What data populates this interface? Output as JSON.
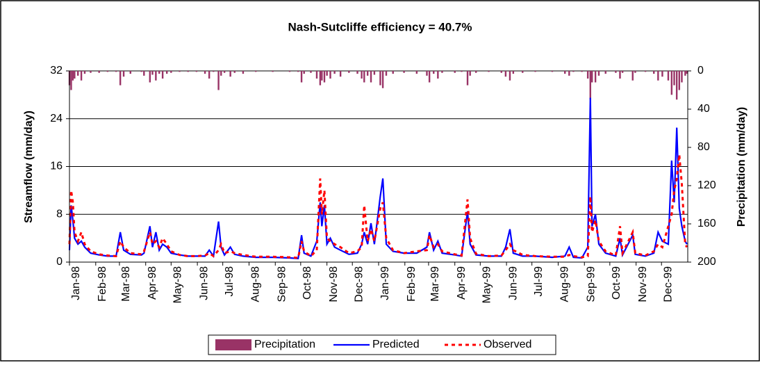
{
  "chart_data": {
    "type": "line",
    "title": "Nash-Sutcliffe efficiency = 40.7%",
    "ylabel": "Streamflow (mm/day)",
    "y2label": "Precipitation (mm/day)",
    "xlim": [
      0,
      730
    ],
    "xticks": [
      {
        "value": 0,
        "label": "Jan-98"
      },
      {
        "value": 31,
        "label": "Feb-98"
      },
      {
        "value": 59,
        "label": "Mar-98"
      },
      {
        "value": 90,
        "label": "Apr-98"
      },
      {
        "value": 120,
        "label": "May-98"
      },
      {
        "value": 151,
        "label": "Jun-98"
      },
      {
        "value": 181,
        "label": "Jul-98"
      },
      {
        "value": 212,
        "label": "Aug-98"
      },
      {
        "value": 243,
        "label": "Sep-98"
      },
      {
        "value": 273,
        "label": "Oct-98"
      },
      {
        "value": 304,
        "label": "Nov-98"
      },
      {
        "value": 334,
        "label": "Dec-98"
      },
      {
        "value": 365,
        "label": "Jan-99"
      },
      {
        "value": 396,
        "label": "Feb-99"
      },
      {
        "value": 424,
        "label": "Mar-99"
      },
      {
        "value": 455,
        "label": "Apr-99"
      },
      {
        "value": 485,
        "label": "May-99"
      },
      {
        "value": 516,
        "label": "Jun-99"
      },
      {
        "value": 546,
        "label": "Jul-99"
      },
      {
        "value": 577,
        "label": "Aug-99"
      },
      {
        "value": 608,
        "label": "Sep-99"
      },
      {
        "value": 638,
        "label": "Oct-99"
      },
      {
        "value": 669,
        "label": "Nov-99"
      },
      {
        "value": 699,
        "label": "Dec-99"
      }
    ],
    "ylim": [
      0,
      32
    ],
    "yticks": [
      0,
      8,
      16,
      24,
      32
    ],
    "y2lim": [
      0,
      200
    ],
    "y2reverse": true,
    "y2ticks": [
      0,
      40,
      80,
      120,
      160,
      200
    ],
    "grid": true,
    "legend": "bottom",
    "x": [
      0,
      2,
      4,
      6,
      10,
      14,
      18,
      25,
      35,
      45,
      55,
      60,
      64,
      72,
      85,
      88,
      95,
      98,
      102,
      106,
      110,
      115,
      120,
      130,
      140,
      150,
      160,
      165,
      170,
      176,
      179,
      183,
      190,
      195,
      205,
      220,
      240,
      260,
      270,
      274,
      277,
      285,
      292,
      296,
      298,
      301,
      304,
      308,
      313,
      320,
      330,
      340,
      345,
      348,
      352,
      356,
      360,
      367,
      370,
      374,
      382,
      395,
      410,
      422,
      425,
      430,
      435,
      440,
      455,
      463,
      470,
      473,
      480,
      495,
      510,
      515,
      520,
      524,
      535,
      550,
      570,
      585,
      590,
      595,
      605,
      612,
      615,
      617,
      621,
      625,
      633,
      645,
      650,
      653,
      665,
      668,
      680,
      690,
      695,
      700,
      707,
      711,
      714,
      717,
      720,
      723,
      727,
      729
    ],
    "series": [
      {
        "name": "Precipitation",
        "type": "bar",
        "axis": "y2",
        "color": "#993366",
        "values": [
          15,
          20,
          10,
          8,
          5,
          10,
          3,
          2,
          2,
          1,
          1,
          15,
          6,
          3,
          1,
          5,
          12,
          4,
          10,
          3,
          8,
          3,
          2,
          1,
          1,
          1,
          3,
          8,
          1,
          20,
          5,
          2,
          6,
          2,
          3,
          1,
          1,
          1,
          1,
          12,
          3,
          2,
          8,
          15,
          10,
          12,
          5,
          8,
          3,
          6,
          2,
          3,
          8,
          12,
          5,
          12,
          4,
          15,
          18,
          5,
          3,
          2,
          3,
          5,
          12,
          3,
          8,
          2,
          2,
          1,
          15,
          5,
          2,
          1,
          2,
          6,
          10,
          3,
          2,
          1,
          1,
          3,
          5,
          1,
          1,
          8,
          30,
          12,
          12,
          5,
          3,
          2,
          8,
          2,
          10,
          2,
          1,
          3,
          10,
          6,
          10,
          25,
          15,
          30,
          20,
          12,
          5,
          3
        ]
      },
      {
        "name": "Predicted",
        "type": "line",
        "color": "#0000ff",
        "values": [
          2,
          9.5,
          7,
          4,
          3,
          3.5,
          2.5,
          1.5,
          1.2,
          1,
          1,
          5,
          2,
          1.3,
          1.2,
          1.5,
          6,
          2.5,
          5,
          2,
          3,
          2.5,
          1.5,
          1.2,
          1,
          1,
          1,
          2,
          1,
          6.8,
          2.5,
          1.2,
          2.5,
          1.3,
          1,
          0.8,
          0.8,
          0.7,
          0.6,
          4.5,
          1.5,
          1,
          3.5,
          10,
          6,
          9.5,
          3,
          4,
          2.5,
          2,
          1.3,
          1.5,
          3,
          5,
          3,
          6.5,
          3,
          11,
          14,
          3,
          1.8,
          1.5,
          1.5,
          2.5,
          5,
          2,
          3.5,
          1.5,
          1.2,
          1,
          8.5,
          3,
          1.2,
          1,
          1,
          2.5,
          5.5,
          1.5,
          1,
          1,
          0.8,
          1,
          2.5,
          0.8,
          0.7,
          2.5,
          27.5,
          6,
          8,
          3,
          1.5,
          1,
          4,
          1.2,
          4.5,
          1.3,
          1,
          1.5,
          5,
          3.5,
          3,
          17,
          10,
          22.5,
          9,
          6,
          3.5,
          3
        ]
      },
      {
        "name": "Observed",
        "type": "line",
        "dash": true,
        "color": "#ff0000",
        "values": [
          3,
          12,
          10,
          5,
          3.5,
          5,
          3,
          1.8,
          1.3,
          1.1,
          1,
          3.5,
          2.5,
          1.5,
          1.3,
          1.8,
          5,
          3,
          3.5,
          2.5,
          4,
          3,
          1.8,
          1.2,
          1,
          1,
          1.1,
          1.5,
          1,
          2,
          3,
          1.5,
          1.8,
          1.5,
          1.2,
          0.9,
          0.9,
          0.8,
          0.7,
          3.5,
          1.8,
          1,
          2,
          14,
          8,
          12,
          4,
          3.5,
          3,
          2.5,
          1.5,
          1.8,
          2.5,
          9.5,
          3.5,
          5.5,
          3.5,
          9,
          10,
          4,
          2,
          1.5,
          1.8,
          2,
          4.5,
          2.5,
          3,
          1.8,
          1.3,
          1.1,
          10.5,
          4,
          1.4,
          1,
          1.1,
          2,
          3,
          2,
          1.2,
          1,
          0.9,
          0.9,
          1.2,
          1,
          0.8,
          1,
          11,
          5,
          7,
          3.5,
          1.8,
          1.1,
          6,
          1.5,
          5,
          1.5,
          1.1,
          1.8,
          3,
          2.5,
          6,
          8,
          12,
          14,
          18,
          13,
          3,
          2.5
        ]
      }
    ]
  }
}
